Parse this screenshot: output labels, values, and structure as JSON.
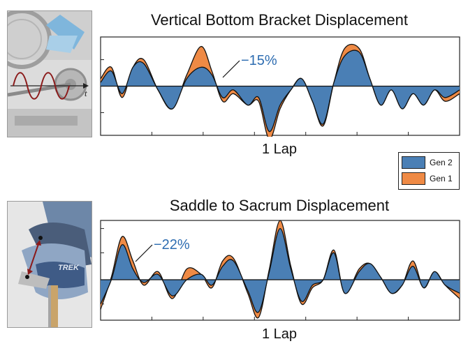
{
  "colors": {
    "gen2": "#4a7fb5",
    "gen1": "#ef8a45",
    "axis": "#222222",
    "grid": "#b0b0b0",
    "annotation": "#2e6db1"
  },
  "legend": {
    "items": [
      {
        "label": "Gen 2"
      },
      {
        "label": "Gen 1"
      }
    ]
  },
  "chart_data": [
    {
      "type": "area",
      "title": "Vertical Bottom Bracket Displacement",
      "xlabel": "1 Lap",
      "annotation": "−15%",
      "x_ticks": 7,
      "ylim": [
        -1.3,
        1.3
      ],
      "y_ticks": [
        0.7,
        0,
        -0.7
      ],
      "series": [
        {
          "name": "Gen 2",
          "x": [
            0,
            0.03,
            0.06,
            0.09,
            0.12,
            0.16,
            0.2,
            0.24,
            0.28,
            0.31,
            0.34,
            0.37,
            0.41,
            0.44,
            0.47,
            0.5,
            0.53,
            0.56,
            0.59,
            0.62,
            0.65,
            0.68,
            0.72,
            0.75,
            0.78,
            0.81,
            0.84,
            0.87,
            0.9,
            0.93,
            0.96,
            1.0
          ],
          "values": [
            0.1,
            0.4,
            -0.2,
            0.5,
            0.6,
            -0.1,
            -0.6,
            0.2,
            0.5,
            0.3,
            -0.3,
            -0.1,
            -0.5,
            -0.3,
            -1.2,
            -0.5,
            -0.1,
            0.2,
            -0.4,
            -1.0,
            0.1,
            0.8,
            0.9,
            0.2,
            -0.5,
            -0.1,
            -0.6,
            -0.2,
            -0.5,
            -0.1,
            -0.3,
            -0.1
          ]
        },
        {
          "name": "Gen 1",
          "x": [
            0,
            0.03,
            0.06,
            0.09,
            0.12,
            0.16,
            0.2,
            0.24,
            0.28,
            0.31,
            0.34,
            0.37,
            0.41,
            0.44,
            0.47,
            0.5,
            0.53,
            0.56,
            0.59,
            0.62,
            0.65,
            0.68,
            0.72,
            0.75,
            0.78,
            0.81,
            0.84,
            0.87,
            0.9,
            0.93,
            0.96,
            1.0
          ],
          "values": [
            0.2,
            0.5,
            -0.3,
            0.5,
            0.7,
            -0.1,
            -0.6,
            0.3,
            1.05,
            0.4,
            -0.4,
            -0.2,
            -0.5,
            -0.4,
            -1.4,
            -0.6,
            -0.1,
            0.2,
            -0.4,
            -1.05,
            0.1,
            1.0,
            1.0,
            0.2,
            -0.5,
            -0.1,
            -0.6,
            -0.2,
            -0.5,
            -0.1,
            -0.4,
            -0.2
          ]
        }
      ]
    },
    {
      "type": "area",
      "title": "Saddle to Sacrum Displacement",
      "xlabel": "1 Lap",
      "annotation": "−22%",
      "x_ticks": 7,
      "ylim": [
        -1.5,
        2.2
      ],
      "y_ticks": [
        1.9,
        1.0,
        -0.9
      ],
      "series": [
        {
          "name": "Gen 2",
          "x": [
            0,
            0.03,
            0.06,
            0.09,
            0.12,
            0.16,
            0.2,
            0.24,
            0.28,
            0.31,
            0.34,
            0.37,
            0.41,
            0.44,
            0.47,
            0.5,
            0.53,
            0.56,
            0.59,
            0.62,
            0.65,
            0.68,
            0.72,
            0.75,
            0.78,
            0.81,
            0.84,
            0.87,
            0.9,
            0.93,
            0.96,
            1.0
          ],
          "values": [
            -0.9,
            0.0,
            1.3,
            0.4,
            -0.1,
            0.2,
            -0.6,
            0.0,
            0.2,
            -0.2,
            0.5,
            0.7,
            -0.4,
            -1.2,
            0.3,
            1.9,
            0.4,
            -0.8,
            -0.2,
            0.0,
            1.0,
            -0.5,
            0.3,
            0.6,
            0.1,
            -0.5,
            -0.2,
            0.5,
            -0.3,
            0.3,
            -0.2,
            -0.5
          ]
        },
        {
          "name": "Gen 1",
          "x": [
            0,
            0.03,
            0.06,
            0.09,
            0.12,
            0.16,
            0.2,
            0.24,
            0.28,
            0.31,
            0.34,
            0.37,
            0.41,
            0.44,
            0.47,
            0.5,
            0.53,
            0.56,
            0.59,
            0.62,
            0.65,
            0.68,
            0.72,
            0.75,
            0.78,
            0.81,
            0.84,
            0.87,
            0.9,
            0.93,
            0.96,
            1.0
          ],
          "values": [
            -1.1,
            0.1,
            1.6,
            0.7,
            -0.2,
            0.3,
            -0.7,
            0.4,
            0.2,
            -0.3,
            0.7,
            0.8,
            -0.5,
            -1.4,
            0.4,
            2.2,
            0.5,
            -0.9,
            -0.3,
            0.0,
            1.1,
            -0.5,
            0.4,
            0.6,
            0.1,
            -0.5,
            -0.2,
            0.7,
            -0.3,
            0.3,
            -0.2,
            -0.7
          ]
        }
      ]
    }
  ]
}
